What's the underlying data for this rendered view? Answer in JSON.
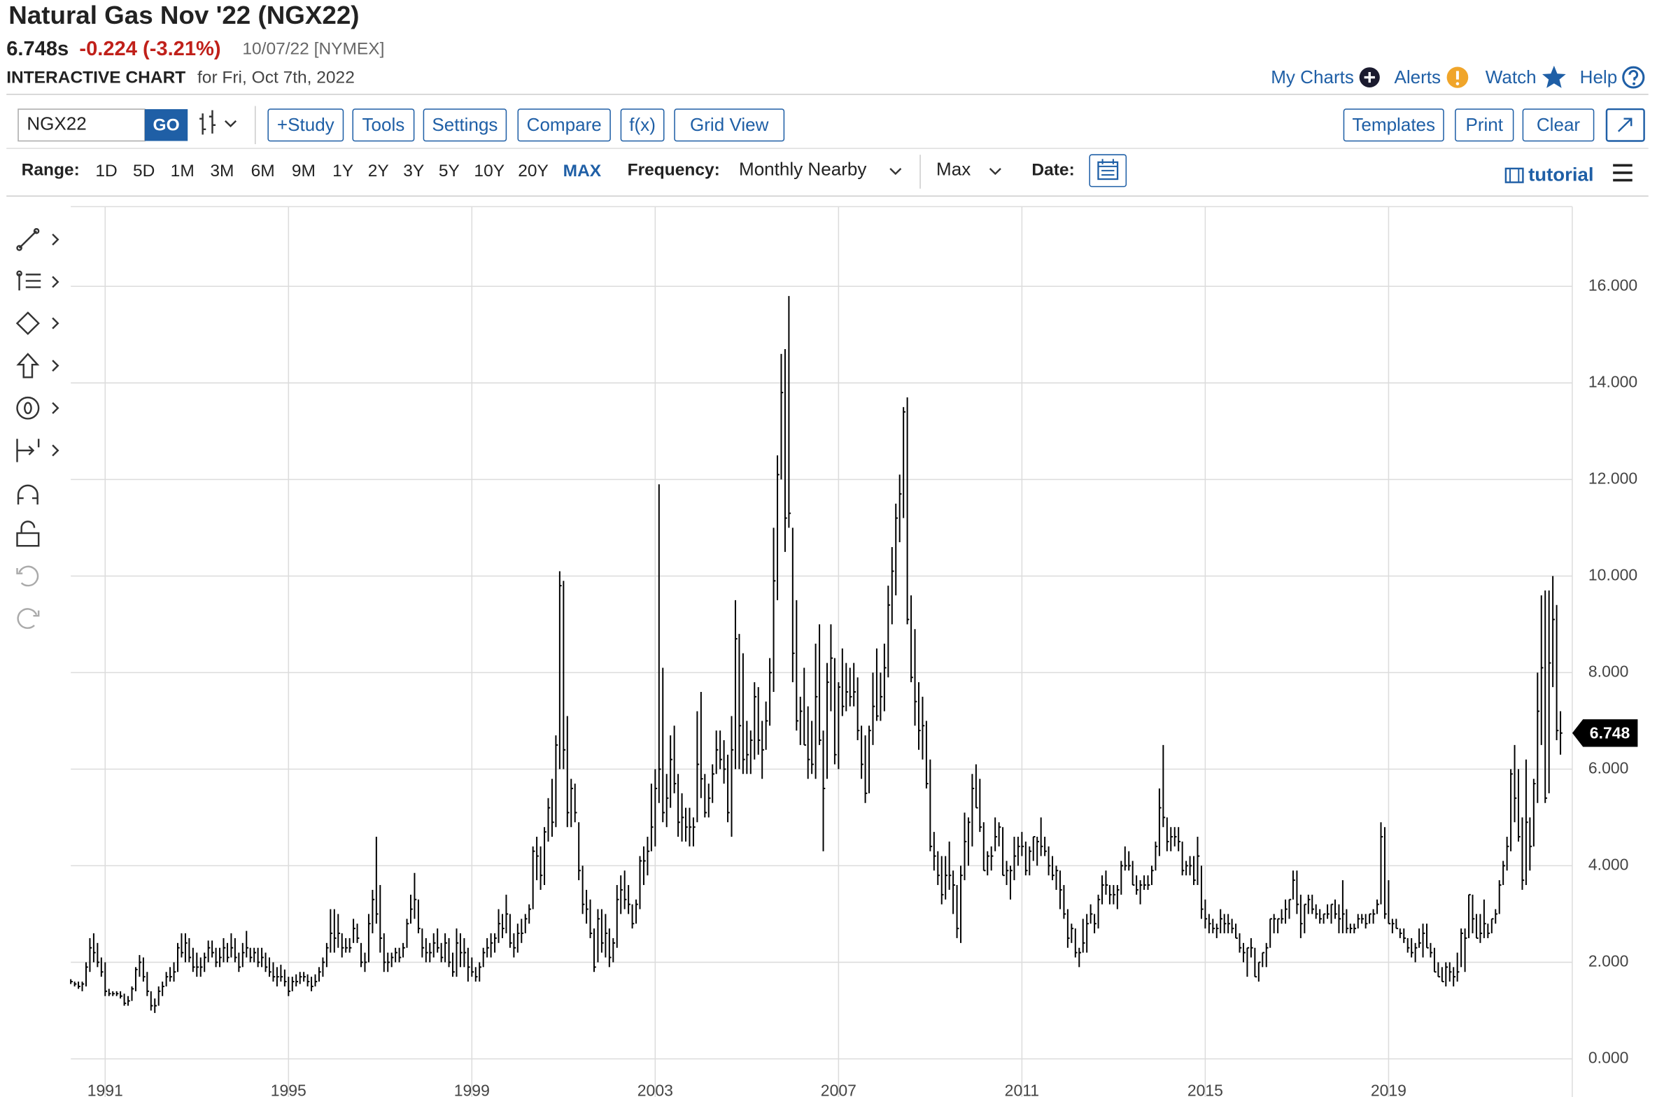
{
  "header": {
    "title": "Natural Gas Nov '22 (NGX22)",
    "last": "6.748s",
    "change": "-0.224 (-3.21%)",
    "date": "10/07/22 [NYMEX]",
    "chart_label": "INTERACTIVE CHART",
    "chart_date": "for Fri, Oct 7th, 2022"
  },
  "links": [
    "My Charts",
    "Alerts",
    "Watch",
    "Help"
  ],
  "toolbar": {
    "symbol": "NGX22",
    "go": "GO",
    "buttons": [
      "+Study",
      "Tools",
      "Settings",
      "Compare",
      "f(x)",
      "Grid View"
    ],
    "right_buttons": [
      "Templates",
      "Print",
      "Clear"
    ]
  },
  "range_bar": {
    "range_label": "Range:",
    "ranges": [
      "1D",
      "5D",
      "1M",
      "3M",
      "6M",
      "9M",
      "1Y",
      "2Y",
      "3Y",
      "5Y",
      "10Y",
      "20Y",
      "MAX"
    ],
    "frequency_label": "Frequency:",
    "frequency": "Monthly Nearby",
    "aggregation": "Max",
    "date_label": "Date:",
    "tutorial": "tutorial"
  },
  "chart_data": {
    "type": "ohlc",
    "color": "#000000",
    "grid": true,
    "categories": [
      null,
      null,
      null,
      null,
      null,
      null,
      null,
      null,
      null,
      "1991",
      null,
      null,
      null,
      null,
      null,
      null,
      null,
      null,
      null,
      null,
      null,
      null,
      null,
      null,
      null,
      null,
      null,
      null,
      null,
      null,
      null,
      null,
      null,
      null,
      null,
      null,
      null,
      null,
      null,
      null,
      null,
      null,
      null,
      null,
      null,
      null,
      null,
      null,
      null,
      null,
      null,
      null,
      null,
      null,
      null,
      null,
      null,
      "1995",
      null,
      null,
      null,
      null,
      null,
      null,
      null,
      null,
      null,
      null,
      null,
      null,
      null,
      null,
      null,
      null,
      null,
      null,
      null,
      null,
      null,
      null,
      null,
      null,
      null,
      null,
      null,
      null,
      null,
      null,
      null,
      null,
      null,
      null,
      null,
      null,
      null,
      null,
      null,
      null,
      null,
      null,
      null,
      null,
      null,
      null,
      null,
      "1999",
      null,
      null,
      null,
      null,
      null,
      null,
      null,
      null,
      null,
      null,
      null,
      null,
      null,
      null,
      null,
      null,
      null,
      null,
      null,
      null,
      null,
      null,
      null,
      null,
      null,
      null,
      null,
      null,
      null,
      null,
      null,
      null,
      null,
      null,
      null,
      null,
      null,
      null,
      null,
      null,
      null,
      null,
      null,
      null,
      null,
      null,
      null,
      "2003",
      null,
      null,
      null,
      null,
      null,
      null,
      null,
      null,
      null,
      null,
      null,
      null,
      null,
      null,
      null,
      null,
      null,
      null,
      null,
      null,
      null,
      null,
      null,
      null,
      null,
      null,
      null,
      null,
      null,
      null,
      null,
      null,
      null,
      null,
      null,
      null,
      null,
      null,
      null,
      null,
      null,
      null,
      null,
      null,
      null,
      null,
      null,
      "2007",
      null,
      null,
      null,
      null,
      null,
      null,
      null,
      null,
      null,
      null,
      null,
      null,
      null,
      null,
      null,
      null,
      null,
      null,
      null,
      null,
      null,
      null,
      null,
      null,
      null,
      null,
      null,
      null,
      null,
      null,
      null,
      null,
      null,
      null,
      null,
      null,
      null,
      null,
      null,
      null,
      null,
      null,
      null,
      null,
      null,
      null,
      null,
      "2011",
      null,
      null,
      null,
      null,
      null,
      null,
      null,
      null,
      null,
      null,
      null,
      null,
      null,
      null,
      null,
      null,
      null,
      null,
      null,
      null,
      null,
      null,
      null,
      null,
      null,
      null,
      null,
      null,
      null,
      null,
      null,
      null,
      null,
      null,
      null,
      null,
      null,
      null,
      null,
      null,
      null,
      null,
      null,
      null,
      null,
      null,
      null,
      "2015",
      null,
      null,
      null,
      null,
      null,
      null,
      null,
      null,
      null,
      null,
      null,
      null,
      null,
      null,
      null,
      null,
      null,
      null,
      null,
      null,
      null,
      null,
      null,
      null,
      null,
      null,
      null,
      null,
      null,
      null,
      null,
      null,
      null,
      null,
      null,
      null,
      null,
      null,
      null,
      null,
      null,
      null,
      null,
      null,
      null,
      null,
      null,
      "2019",
      null,
      null,
      null,
      null,
      null,
      null,
      null,
      null,
      null,
      null,
      null,
      null,
      null,
      null,
      null,
      null,
      null,
      null,
      null,
      null,
      null,
      null,
      null,
      null,
      null,
      null,
      null,
      null,
      null,
      null,
      null,
      null,
      null,
      null,
      null,
      null,
      null,
      null,
      null,
      null,
      null,
      null,
      null,
      null,
      null
    ],
    "high": [
      1.65,
      1.6,
      1.6,
      1.6,
      2.0,
      2.5,
      2.6,
      2.4,
      2.1,
      2.0,
      1.45,
      1.4,
      1.4,
      1.4,
      1.35,
      1.3,
      1.5,
      1.9,
      2.15,
      2.1,
      1.8,
      1.4,
      1.25,
      1.5,
      1.6,
      1.8,
      1.9,
      2.0,
      2.4,
      2.6,
      2.6,
      2.5,
      2.3,
      2.2,
      2.1,
      2.2,
      2.45,
      2.45,
      2.3,
      2.3,
      2.5,
      2.4,
      2.6,
      2.5,
      2.2,
      2.4,
      2.65,
      2.3,
      2.3,
      2.3,
      2.3,
      2.2,
      2.1,
      2.0,
      1.9,
      1.95,
      1.85,
      1.7,
      1.7,
      1.75,
      1.8,
      1.8,
      1.75,
      1.7,
      1.75,
      1.9,
      2.1,
      2.4,
      3.1,
      3.1,
      3.0,
      2.6,
      2.5,
      2.5,
      2.9,
      2.8,
      2.4,
      2.2,
      3.0,
      3.5,
      4.6,
      3.6,
      2.6,
      2.2,
      2.2,
      2.3,
      2.3,
      2.4,
      2.9,
      3.4,
      3.85,
      3.3,
      2.7,
      2.5,
      2.4,
      2.6,
      2.7,
      2.4,
      2.6,
      2.5,
      2.2,
      2.7,
      2.6,
      2.5,
      2.3,
      2.1,
      1.9,
      2.0,
      2.3,
      2.5,
      2.6,
      2.6,
      3.1,
      3.0,
      3.4,
      3.0,
      2.6,
      2.8,
      2.9,
      3.0,
      3.2,
      4.4,
      4.6,
      4.4,
      4.8,
      5.4,
      5.8,
      6.7,
      10.1,
      9.9,
      7.1,
      5.8,
      5.7,
      4.9,
      4.0,
      3.5,
      3.3,
      2.7,
      3.1,
      3.1,
      3.0,
      2.7,
      2.5,
      3.6,
      3.8,
      3.9,
      3.6,
      3.2,
      3.3,
      4.2,
      4.4,
      4.6,
      5.7,
      6.0,
      11.9,
      8.1,
      5.9,
      6.7,
      6.9,
      5.9,
      5.5,
      5.2,
      5.2,
      5.0,
      7.2,
      7.6,
      5.9,
      5.7,
      6.1,
      6.8,
      6.8,
      6.6,
      6.3,
      7.1,
      9.5,
      8.8,
      8.4,
      7.0,
      6.8,
      7.8,
      7.7,
      7.0,
      7.4,
      8.3,
      11.0,
      12.5,
      14.6,
      14.7,
      15.8,
      11.0,
      9.5,
      7.5,
      8.1,
      7.3,
      7.0,
      8.6,
      9.0,
      6.8,
      8.2,
      9.0,
      8.3,
      7.8,
      8.5,
      8.2,
      8.1,
      8.2,
      7.9,
      6.9,
      6.7,
      6.9,
      8.0,
      8.5,
      8.0,
      8.6,
      9.8,
      10.6,
      11.5,
      12.1,
      13.5,
      13.7,
      9.6,
      8.9,
      7.8,
      7.5,
      7.0,
      6.2,
      4.7,
      4.3,
      4.2,
      4.2,
      4.5,
      3.9,
      3.6,
      4.0,
      5.1,
      5.0,
      5.9,
      6.1,
      5.8,
      4.9,
      4.3,
      4.4,
      5.0,
      4.9,
      4.8,
      4.1,
      4.0,
      4.6,
      4.6,
      4.7,
      4.5,
      4.4,
      4.6,
      4.6,
      5.0,
      4.6,
      4.4,
      4.2,
      4.0,
      3.9,
      3.6,
      3.1,
      2.8,
      2.7,
      2.3,
      2.9,
      3.0,
      3.2,
      3.0,
      3.4,
      3.8,
      3.9,
      3.6,
      3.6,
      3.6,
      4.1,
      4.4,
      4.3,
      4.1,
      3.8,
      3.7,
      3.8,
      3.8,
      4.0,
      4.5,
      5.6,
      6.5,
      5.0,
      4.8,
      4.8,
      4.8,
      4.5,
      4.1,
      4.2,
      4.2,
      4.6,
      4.0,
      3.3,
      3.0,
      2.9,
      2.8,
      3.1,
      3.0,
      3.0,
      2.9,
      2.8,
      2.6,
      2.4,
      2.3,
      2.5,
      2.3,
      2.0,
      2.2,
      2.4,
      2.9,
      3.0,
      2.9,
      3.1,
      3.3,
      3.3,
      3.9,
      3.9,
      3.4,
      3.2,
      3.4,
      3.4,
      3.2,
      3.1,
      3.0,
      3.2,
      3.2,
      3.3,
      3.2,
      3.7,
      3.1,
      2.8,
      2.8,
      3.0,
      3.0,
      3.0,
      3.0,
      3.1,
      3.3,
      4.9,
      4.8,
      3.7,
      2.9,
      2.9,
      2.7,
      2.7,
      2.5,
      2.5,
      2.4,
      2.7,
      2.8,
      2.8,
      2.4,
      2.3,
      2.0,
      1.9,
      2.0,
      2.0,
      1.9,
      2.2,
      2.7,
      2.7,
      3.4,
      3.4,
      3.0,
      3.0,
      3.3,
      2.8,
      2.9,
      3.1,
      3.7,
      4.1,
      4.6,
      6.0,
      6.5,
      6.0,
      5.0,
      6.2,
      5.0,
      5.8,
      8.0,
      9.6,
      9.7,
      9.7,
      10.0,
      9.4,
      7.2
    ],
    "low": [
      1.55,
      1.5,
      1.45,
      1.4,
      1.5,
      1.8,
      2.0,
      1.9,
      1.7,
      1.3,
      1.3,
      1.3,
      1.3,
      1.25,
      1.1,
      1.1,
      1.2,
      1.4,
      1.7,
      1.6,
      1.3,
      1.0,
      0.95,
      1.1,
      1.3,
      1.5,
      1.6,
      1.6,
      1.8,
      2.1,
      2.0,
      2.0,
      1.8,
      1.7,
      1.7,
      1.8,
      2.0,
      2.1,
      1.9,
      1.9,
      2.0,
      2.0,
      2.1,
      2.0,
      1.8,
      1.9,
      2.1,
      2.0,
      2.0,
      1.9,
      1.9,
      1.8,
      1.7,
      1.6,
      1.5,
      1.6,
      1.5,
      1.3,
      1.4,
      1.5,
      1.55,
      1.6,
      1.5,
      1.4,
      1.5,
      1.6,
      1.7,
      1.9,
      2.2,
      2.2,
      2.3,
      2.1,
      2.2,
      2.2,
      2.4,
      2.4,
      1.9,
      1.8,
      2.0,
      2.6,
      2.8,
      2.2,
      1.8,
      1.8,
      1.9,
      2.0,
      2.0,
      2.1,
      2.3,
      2.8,
      2.9,
      2.6,
      2.1,
      2.0,
      2.0,
      2.1,
      2.2,
      2.0,
      2.0,
      1.9,
      1.7,
      1.7,
      1.9,
      1.9,
      1.6,
      1.7,
      1.6,
      1.6,
      1.9,
      2.1,
      2.1,
      2.2,
      2.4,
      2.5,
      2.6,
      2.3,
      2.1,
      2.2,
      2.4,
      2.6,
      2.8,
      3.1,
      3.7,
      3.5,
      3.6,
      4.5,
      4.6,
      4.8,
      6.0,
      6.0,
      4.8,
      4.8,
      4.9,
      3.7,
      3.0,
      2.8,
      2.5,
      1.8,
      2.0,
      2.2,
      2.1,
      1.9,
      2.0,
      2.3,
      3.0,
      3.1,
      3.0,
      2.7,
      2.8,
      3.1,
      3.6,
      3.8,
      4.3,
      4.4,
      5.3,
      4.9,
      4.8,
      5.2,
      5.5,
      4.6,
      4.5,
      4.5,
      4.4,
      4.4,
      4.9,
      5.4,
      5.0,
      5.0,
      5.3,
      5.9,
      6.0,
      5.7,
      4.9,
      4.6,
      6.0,
      6.0,
      5.9,
      5.9,
      5.9,
      6.2,
      6.3,
      5.8,
      6.4,
      6.9,
      7.6,
      9.5,
      12.0,
      10.5,
      11.0,
      7.8,
      6.8,
      6.5,
      6.5,
      5.8,
      5.9,
      5.8,
      6.5,
      4.3,
      5.8,
      7.2,
      6.1,
      6.0,
      7.1,
      7.2,
      7.3,
      7.3,
      6.6,
      5.8,
      5.3,
      5.5,
      6.5,
      7.0,
      7.0,
      7.2,
      7.9,
      9.0,
      9.6,
      10.7,
      11.2,
      9.0,
      7.8,
      6.9,
      6.4,
      6.2,
      5.6,
      4.3,
      3.9,
      3.6,
      3.2,
      3.3,
      3.5,
      3.0,
      2.5,
      2.4,
      3.7,
      4.0,
      4.4,
      5.2,
      4.7,
      3.9,
      3.8,
      3.9,
      4.3,
      4.4,
      3.8,
      3.6,
      3.3,
      3.7,
      4.0,
      4.2,
      3.8,
      3.8,
      4.1,
      4.0,
      4.2,
      4.2,
      3.8,
      3.7,
      3.5,
      3.1,
      2.9,
      2.3,
      2.4,
      2.1,
      1.9,
      2.2,
      2.2,
      2.8,
      2.6,
      2.7,
      3.2,
      3.4,
      3.2,
      3.2,
      3.1,
      3.4,
      3.9,
      3.9,
      3.6,
      3.4,
      3.2,
      3.5,
      3.5,
      3.6,
      3.9,
      4.2,
      4.8,
      4.3,
      4.3,
      4.4,
      4.3,
      3.8,
      3.8,
      3.8,
      3.6,
      3.6,
      2.9,
      2.7,
      2.6,
      2.6,
      2.5,
      2.6,
      2.6,
      2.6,
      2.6,
      2.5,
      2.2,
      2.0,
      1.7,
      2.1,
      1.7,
      1.6,
      1.9,
      1.9,
      2.3,
      2.6,
      2.6,
      2.8,
      2.8,
      2.9,
      3.3,
      3.0,
      2.5,
      2.6,
      3.0,
      3.0,
      2.9,
      2.8,
      2.8,
      2.9,
      2.8,
      2.9,
      2.6,
      2.6,
      2.6,
      2.6,
      2.6,
      2.7,
      2.8,
      2.7,
      2.8,
      2.8,
      3.0,
      3.2,
      2.9,
      2.8,
      2.6,
      2.7,
      2.5,
      2.4,
      2.2,
      2.1,
      2.0,
      2.3,
      2.1,
      2.3,
      2.1,
      1.8,
      1.7,
      1.6,
      1.5,
      1.6,
      1.5,
      1.6,
      1.9,
      1.8,
      2.5,
      2.6,
      2.5,
      2.4,
      2.5,
      2.5,
      2.6,
      2.8,
      3.0,
      3.6,
      3.9,
      4.3,
      4.9,
      4.5,
      3.5,
      3.6,
      3.9,
      4.4,
      5.3,
      6.5,
      5.3,
      5.5,
      7.7,
      6.6,
      6.3
    ],
    "close": [
      1.6,
      1.55,
      1.5,
      1.55,
      1.9,
      2.3,
      2.2,
      2.0,
      1.8,
      1.4,
      1.35,
      1.35,
      1.35,
      1.3,
      1.15,
      1.2,
      1.45,
      1.85,
      2.0,
      1.7,
      1.4,
      1.1,
      1.1,
      1.4,
      1.5,
      1.7,
      1.7,
      1.8,
      2.3,
      2.2,
      2.4,
      2.1,
      1.9,
      1.9,
      1.9,
      2.1,
      2.3,
      2.2,
      2.0,
      2.1,
      2.3,
      2.1,
      2.3,
      2.1,
      1.9,
      2.2,
      2.3,
      2.1,
      2.2,
      2.0,
      2.1,
      1.9,
      1.8,
      1.7,
      1.7,
      1.7,
      1.6,
      1.4,
      1.6,
      1.6,
      1.7,
      1.7,
      1.6,
      1.5,
      1.6,
      1.8,
      2.0,
      2.3,
      2.6,
      2.5,
      2.6,
      2.3,
      2.3,
      2.3,
      2.7,
      2.5,
      2.0,
      2.0,
      2.8,
      3.3,
      3.0,
      2.5,
      2.0,
      2.0,
      2.1,
      2.2,
      2.1,
      2.3,
      2.8,
      3.1,
      3.3,
      2.7,
      2.3,
      2.2,
      2.2,
      2.4,
      2.3,
      2.1,
      2.4,
      2.0,
      1.8,
      2.4,
      2.2,
      2.2,
      1.9,
      1.8,
      1.7,
      1.9,
      2.2,
      2.3,
      2.4,
      2.5,
      2.8,
      2.7,
      3.0,
      2.4,
      2.3,
      2.6,
      2.6,
      2.9,
      3.1,
      4.3,
      4.2,
      3.8,
      4.7,
      5.2,
      4.9,
      6.5,
      9.8,
      6.4,
      5.1,
      5.6,
      5.1,
      3.9,
      3.2,
      3.1,
      2.6,
      1.9,
      2.9,
      2.4,
      2.6,
      2.1,
      2.4,
      3.3,
      3.5,
      3.3,
      3.2,
      2.8,
      3.2,
      4.1,
      4.1,
      4.3,
      4.8,
      5.6,
      6.0,
      5.1,
      5.4,
      6.2,
      5.7,
      4.9,
      5.0,
      4.8,
      4.8,
      4.8,
      6.1,
      5.8,
      5.1,
      5.4,
      5.9,
      6.4,
      6.2,
      6.0,
      5.1,
      6.4,
      8.7,
      6.9,
      6.2,
      6.3,
      6.6,
      7.5,
      6.6,
      6.4,
      7.0,
      8.0,
      9.9,
      12.1,
      13.8,
      11.2,
      11.3,
      8.4,
      7.0,
      7.2,
      6.5,
      6.2,
      6.1,
      7.5,
      6.6,
      5.6,
      7.8,
      8.3,
      6.3,
      7.7,
      7.3,
      7.6,
      7.5,
      7.6,
      6.8,
      6.1,
      5.5,
      6.8,
      7.3,
      7.1,
      7.5,
      8.1,
      9.4,
      10.1,
      11.2,
      11.7,
      13.4,
      9.1,
      7.9,
      7.4,
      6.8,
      6.9,
      5.7,
      4.4,
      4.2,
      3.8,
      3.4,
      3.8,
      3.8,
      3.6,
      2.7,
      3.8,
      4.5,
      4.9,
      5.6,
      5.2,
      4.8,
      3.9,
      4.2,
      4.2,
      4.6,
      4.8,
      3.8,
      3.9,
      3.9,
      4.2,
      4.4,
      4.4,
      3.9,
      4.3,
      4.6,
      4.5,
      4.4,
      4.3,
      4.0,
      3.8,
      3.9,
      3.5,
      3.0,
      2.5,
      2.7,
      2.2,
      2.2,
      2.4,
      2.8,
      3.0,
      2.8,
      3.3,
      3.6,
      3.6,
      3.4,
      3.4,
      3.5,
      4.0,
      4.0,
      4.0,
      3.6,
      3.5,
      3.6,
      3.6,
      3.6,
      3.9,
      4.4,
      5.2,
      5.0,
      4.5,
      4.6,
      4.6,
      4.5,
      3.9,
      4.0,
      4.0,
      3.7,
      4.2,
      3.1,
      2.9,
      2.8,
      2.7,
      2.7,
      2.9,
      2.8,
      2.8,
      2.7,
      2.5,
      2.3,
      2.2,
      2.3,
      2.3,
      1.7,
      2.0,
      2.2,
      2.3,
      2.9,
      2.9,
      2.9,
      2.9,
      3.1,
      3.3,
      3.7,
      3.2,
      2.8,
      3.2,
      3.3,
      3.1,
      3.0,
      2.9,
      3.0,
      3.0,
      3.2,
      3.0,
      2.9,
      3.0,
      2.7,
      2.7,
      2.7,
      2.9,
      2.9,
      2.8,
      3.0,
      3.0,
      3.2,
      4.6,
      3.0,
      2.8,
      2.8,
      2.7,
      2.6,
      2.5,
      2.3,
      2.2,
      2.3,
      2.4,
      2.6,
      2.3,
      2.2,
      1.8,
      1.7,
      1.6,
      1.9,
      1.8,
      1.7,
      1.8,
      2.6,
      2.5,
      3.4,
      2.9,
      2.5,
      2.6,
      2.8,
      2.6,
      2.9,
      3.0,
      3.6,
      4.0,
      4.4,
      5.9,
      5.4,
      4.6,
      3.7,
      4.9,
      4.4,
      5.7,
      7.2,
      8.1,
      5.4,
      8.2,
      9.1,
      6.8,
      6.748
    ],
    "ylim": [
      0,
      17.65
    ],
    "yticks": [
      {
        "value": 0,
        "label": "0.000"
      },
      {
        "value": 2,
        "label": "2.000"
      },
      {
        "value": 4,
        "label": "4.000"
      },
      {
        "value": 6,
        "label": "6.000"
      },
      {
        "value": 8,
        "label": "8.000"
      },
      {
        "value": 10,
        "label": "10.000"
      },
      {
        "value": 12,
        "label": "12.000"
      },
      {
        "value": 14,
        "label": "14.000"
      },
      {
        "value": 16,
        "label": "16.000"
      }
    ]
  }
}
